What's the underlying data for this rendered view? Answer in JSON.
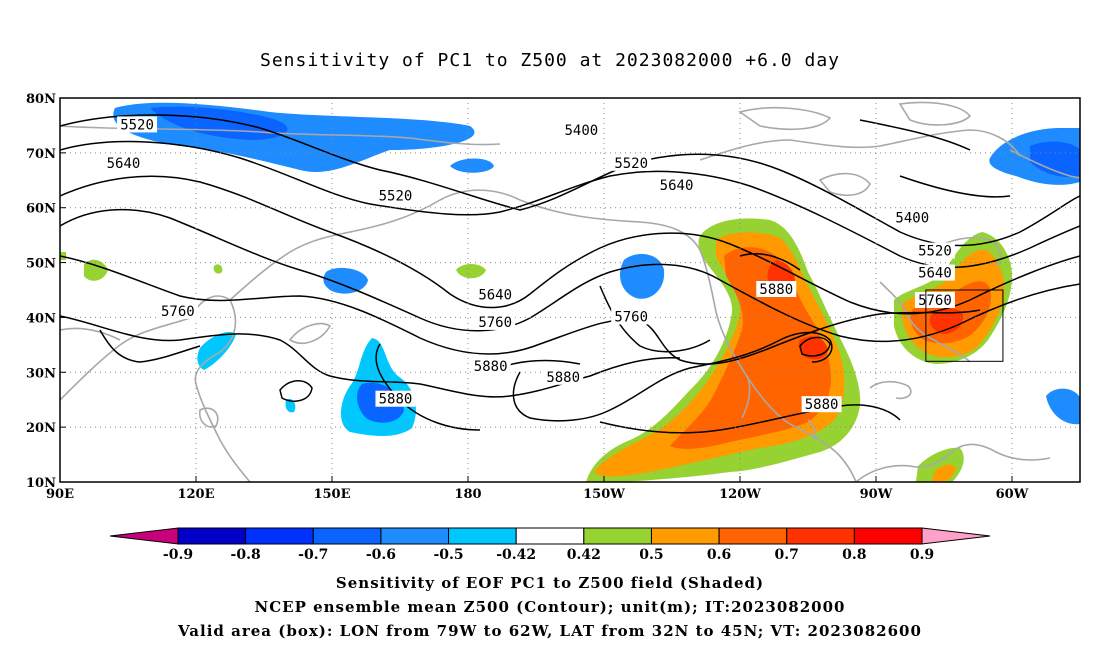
{
  "title": "Sensitivity of PC1 to Z500 at 2023082000 +6.0 day",
  "map": {
    "lon_range": [
      90,
      315
    ],
    "lat_range": [
      10,
      80
    ],
    "lon_ticks": [
      {
        "lon": 90,
        "label": "90E"
      },
      {
        "lon": 120,
        "label": "120E"
      },
      {
        "lon": 150,
        "label": "150E"
      },
      {
        "lon": 180,
        "label": "180"
      },
      {
        "lon": 210,
        "label": "150W"
      },
      {
        "lon": 240,
        "label": "120W"
      },
      {
        "lon": 270,
        "label": "90W"
      },
      {
        "lon": 300,
        "label": "60W"
      }
    ],
    "lat_ticks": [
      {
        "lat": 80,
        "label": "80N"
      },
      {
        "lat": 70,
        "label": "70N"
      },
      {
        "lat": 60,
        "label": "60N"
      },
      {
        "lat": 50,
        "label": "50N"
      },
      {
        "lat": 40,
        "label": "40N"
      },
      {
        "lat": 30,
        "label": "30N"
      },
      {
        "lat": 20,
        "label": "20N"
      },
      {
        "lat": 10,
        "label": "10N"
      }
    ],
    "gridlines": true,
    "valid_box": {
      "lon_min": 281,
      "lon_max": 298,
      "lat_min": 32,
      "lat_max": 45
    },
    "contour_labels": [
      {
        "text": "5520",
        "lon": 107,
        "lat": 75
      },
      {
        "text": "5640",
        "lon": 104,
        "lat": 68
      },
      {
        "text": "5520",
        "lon": 164,
        "lat": 62
      },
      {
        "text": "5400",
        "lon": 205,
        "lat": 74
      },
      {
        "text": "5520",
        "lon": 216,
        "lat": 68
      },
      {
        "text": "5640",
        "lon": 226,
        "lat": 64
      },
      {
        "text": "5400",
        "lon": 278,
        "lat": 58
      },
      {
        "text": "5520",
        "lon": 283,
        "lat": 52
      },
      {
        "text": "5640",
        "lon": 283,
        "lat": 48
      },
      {
        "text": "5760",
        "lon": 283,
        "lat": 43
      },
      {
        "text": "5760",
        "lon": 116,
        "lat": 41
      },
      {
        "text": "5640",
        "lon": 186,
        "lat": 44
      },
      {
        "text": "5760",
        "lon": 186,
        "lat": 39
      },
      {
        "text": "5760",
        "lon": 216,
        "lat": 40
      },
      {
        "text": "5880",
        "lon": 248,
        "lat": 45
      },
      {
        "text": "5880",
        "lon": 185,
        "lat": 31
      },
      {
        "text": "5880",
        "lon": 201,
        "lat": 29
      },
      {
        "text": "5880",
        "lon": 164,
        "lat": 25
      },
      {
        "text": "5880",
        "lon": 258,
        "lat": 24
      }
    ],
    "shading_levels": [
      "-0.9",
      "-0.8",
      "-0.7",
      "-0.6",
      "-0.5",
      "-0.42",
      "0.42",
      "0.5",
      "0.6",
      "0.7",
      "0.8",
      "0.9"
    ]
  },
  "colorbar": {
    "colors": [
      "#c8007a",
      "#0000c8",
      "#0032ff",
      "#0a64ff",
      "#1e8cff",
      "#00c8ff",
      "#ffffff",
      "#96d232",
      "#ff9b00",
      "#ff6400",
      "#ff3200",
      "#ff0000",
      "#ffa0c8"
    ],
    "labels": [
      "-0.9",
      "-0.8",
      "-0.7",
      "-0.6",
      "-0.5",
      "-0.42",
      "0.42",
      "0.5",
      "0.6",
      "0.7",
      "0.8",
      "0.9"
    ]
  },
  "captions": {
    "line1": "Sensitivity of EOF PC1 to Z500 field (Shaded)",
    "line2": "NCEP ensemble mean Z500 (Contour); unit(m); IT:2023082000",
    "line3": "Valid area (box): LON from 79W to 62W, LAT from 32N to 45N; VT: 2023082600"
  }
}
